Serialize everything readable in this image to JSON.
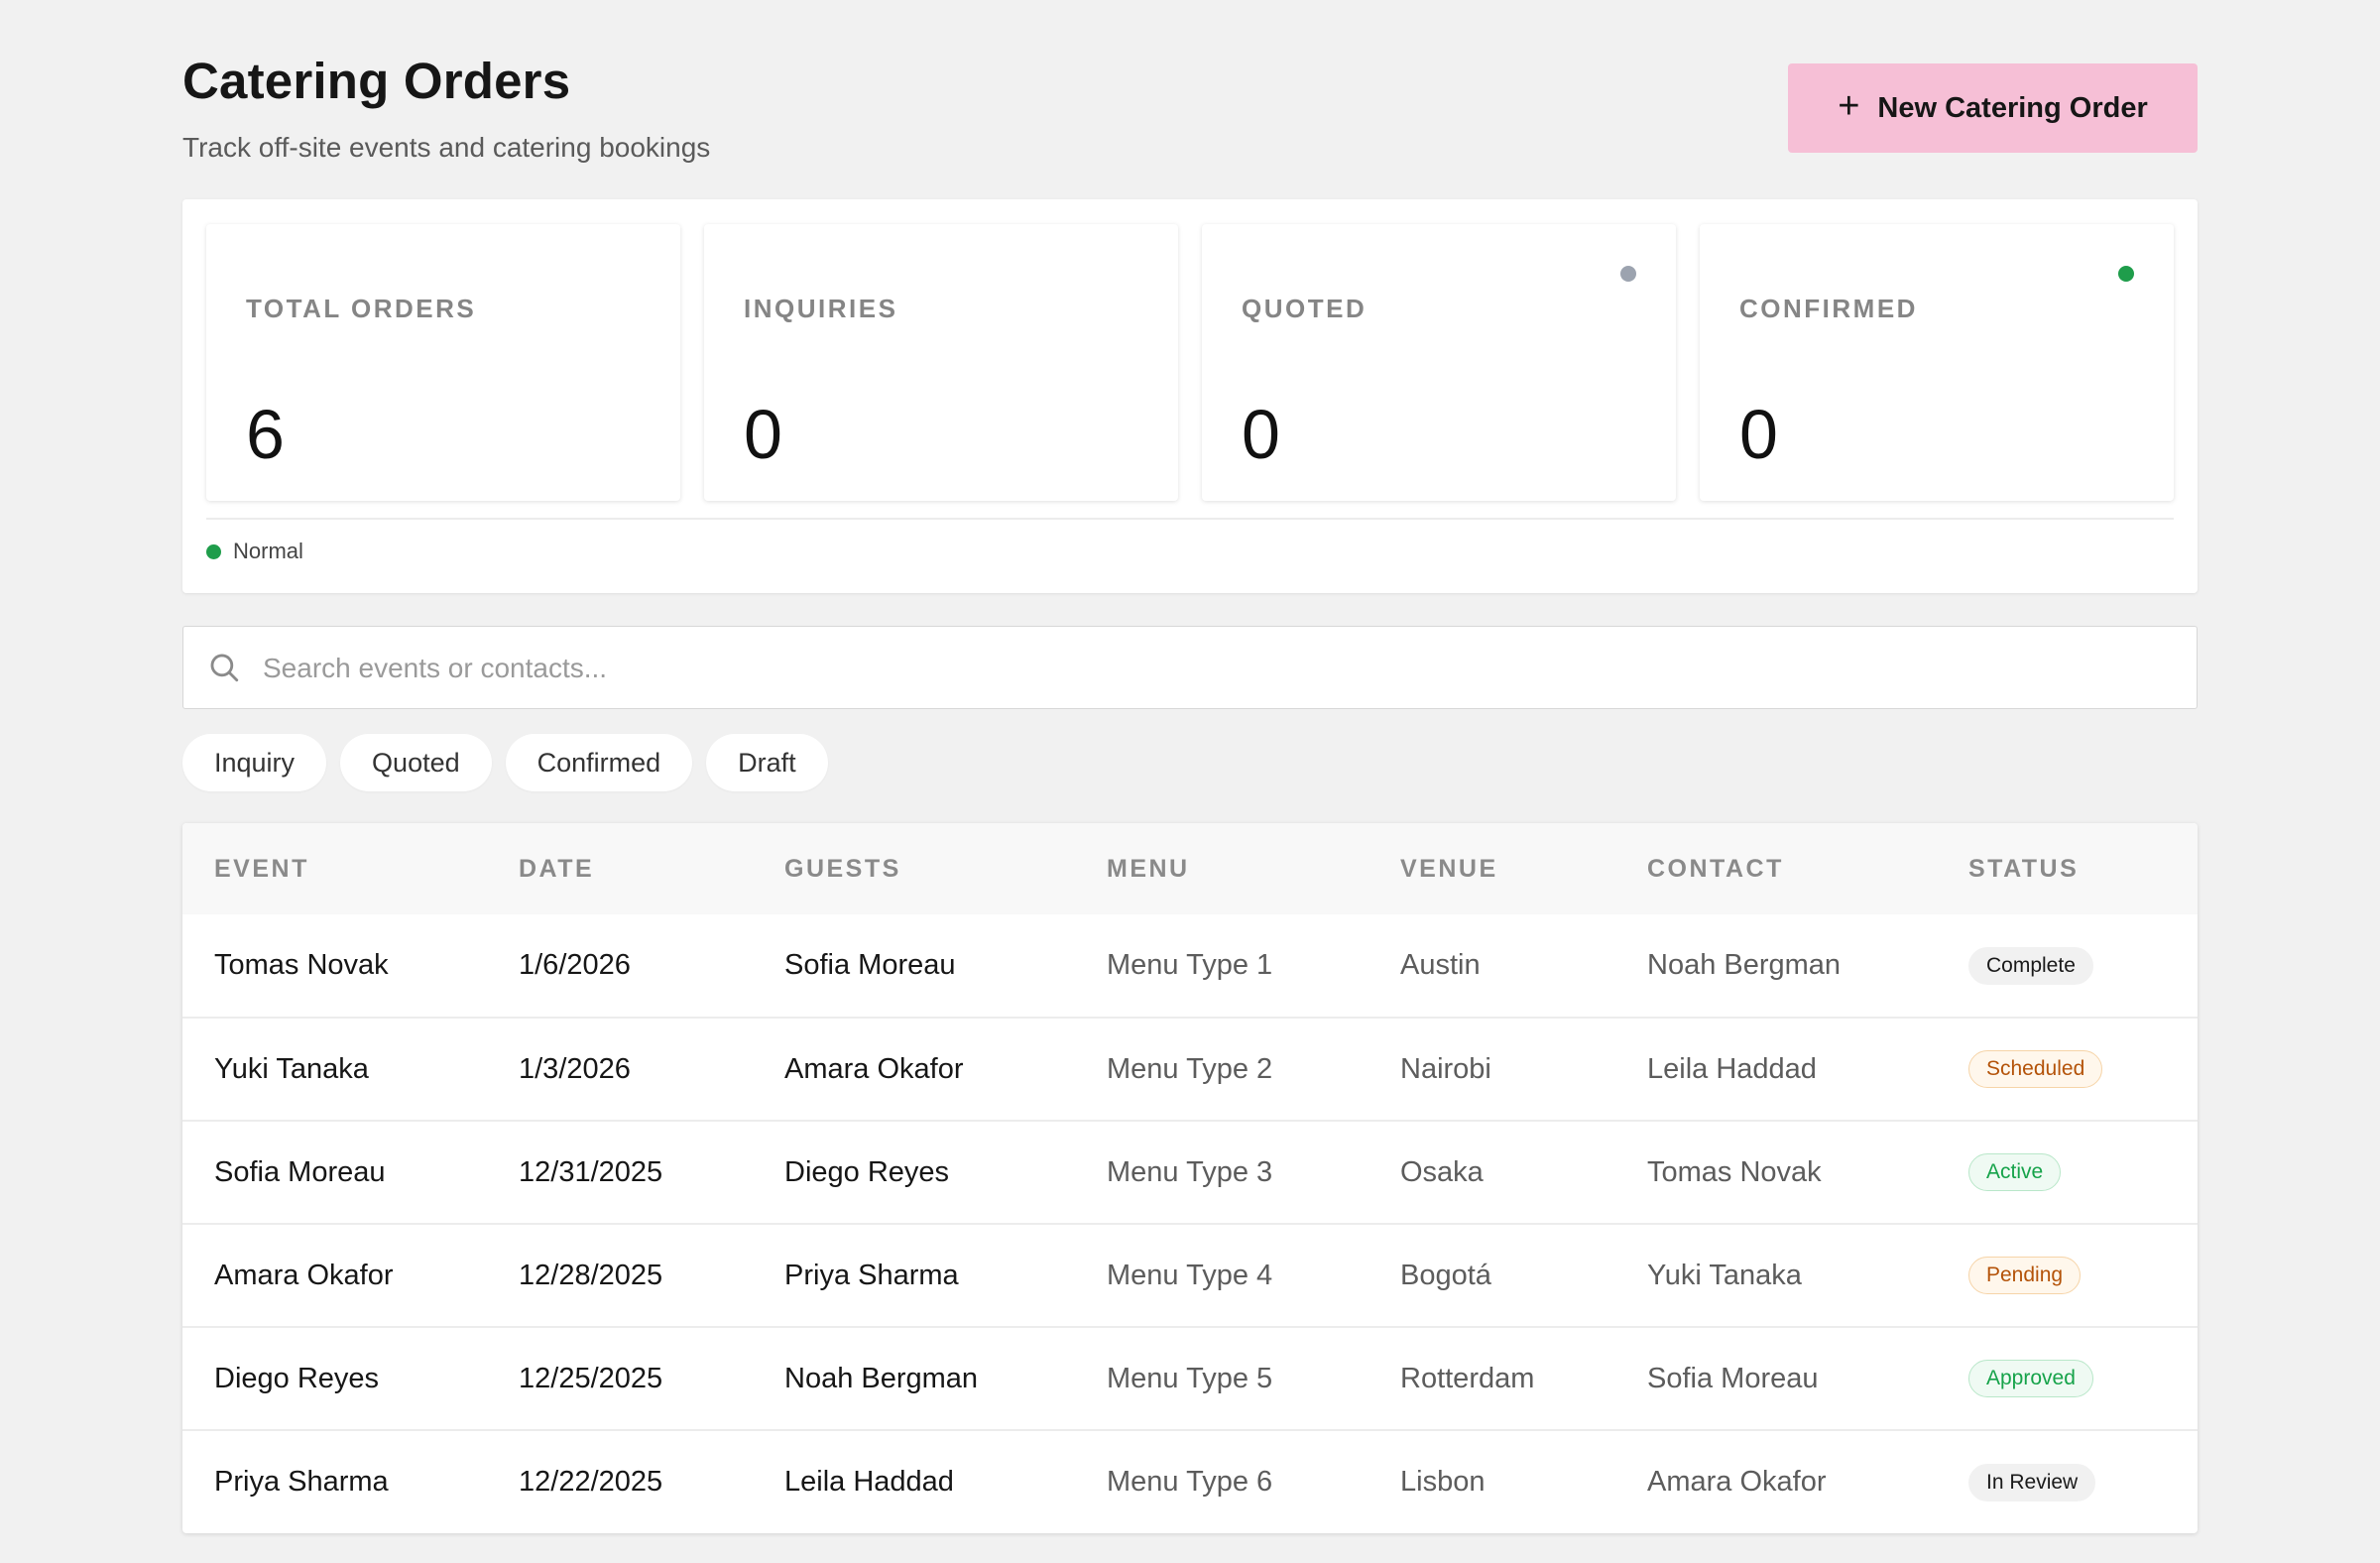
{
  "header": {
    "title": "Catering Orders",
    "subtitle": "Track off-site events and catering bookings",
    "new_button_label": "New Catering Order",
    "new_button_icon": "plus-icon",
    "accent_color": "#f6bfd6"
  },
  "stats": [
    {
      "label": "TOTAL ORDERS",
      "value": "6",
      "dot": null
    },
    {
      "label": "INQUIRIES",
      "value": "0",
      "dot": null
    },
    {
      "label": "QUOTED",
      "value": "0",
      "dot": "#9ca3af"
    },
    {
      "label": "CONFIRMED",
      "value": "0",
      "dot": "#1f9d4b"
    }
  ],
  "legend": {
    "label": "Normal",
    "color": "#1f9d4b"
  },
  "search": {
    "placeholder": "Search events or contacts...",
    "value": "",
    "icon": "search-icon"
  },
  "filters": [
    "Inquiry",
    "Quoted",
    "Confirmed",
    "Draft"
  ],
  "table": {
    "columns": [
      "EVENT",
      "DATE",
      "GUESTS",
      "MENU",
      "VENUE",
      "CONTACT",
      "STATUS"
    ],
    "rows": [
      {
        "event": "Tomas Novak",
        "date": "1/6/2026",
        "guests": "Sofia Moreau",
        "menu": "Menu Type 1",
        "venue": "Austin",
        "contact": "Noah Bergman",
        "status": "Complete",
        "tone": "neutral"
      },
      {
        "event": "Yuki Tanaka",
        "date": "1/3/2026",
        "guests": "Amara Okafor",
        "menu": "Menu Type 2",
        "venue": "Nairobi",
        "contact": "Leila Haddad",
        "status": "Scheduled",
        "tone": "amber"
      },
      {
        "event": "Sofia Moreau",
        "date": "12/31/2025",
        "guests": "Diego Reyes",
        "menu": "Menu Type 3",
        "venue": "Osaka",
        "contact": "Tomas Novak",
        "status": "Active",
        "tone": "green"
      },
      {
        "event": "Amara Okafor",
        "date": "12/28/2025",
        "guests": "Priya Sharma",
        "menu": "Menu Type 4",
        "venue": "Bogotá",
        "contact": "Yuki Tanaka",
        "status": "Pending",
        "tone": "amber"
      },
      {
        "event": "Diego Reyes",
        "date": "12/25/2025",
        "guests": "Noah Bergman",
        "menu": "Menu Type 5",
        "venue": "Rotterdam",
        "contact": "Sofia Moreau",
        "status": "Approved",
        "tone": "green"
      },
      {
        "event": "Priya Sharma",
        "date": "12/22/2025",
        "guests": "Leila Haddad",
        "menu": "Menu Type 6",
        "venue": "Lisbon",
        "contact": "Amara Okafor",
        "status": "In Review",
        "tone": "neutral"
      }
    ]
  }
}
